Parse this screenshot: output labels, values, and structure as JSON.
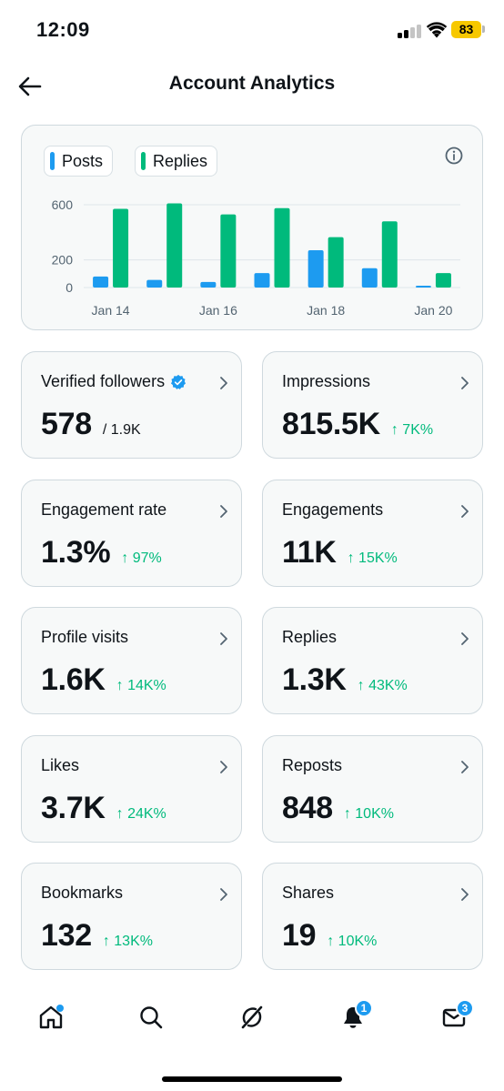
{
  "status_bar": {
    "time": "12:09",
    "battery": "83"
  },
  "header": {
    "title": "Account Analytics"
  },
  "chart_data": {
    "type": "bar",
    "categories": [
      "Jan 14",
      "Jan 15",
      "Jan 16",
      "Jan 17",
      "Jan 18",
      "Jan 19",
      "Jan 20"
    ],
    "x_tick_labels": [
      "Jan 14",
      "Jan 16",
      "Jan 18",
      "Jan 20"
    ],
    "y_tick_labels": [
      "0",
      "200",
      "600"
    ],
    "ylim": [
      0,
      600
    ],
    "series": [
      {
        "name": "Posts",
        "color": "#1d9bf0",
        "values": [
          80,
          55,
          40,
          105,
          270,
          140,
          10
        ]
      },
      {
        "name": "Replies",
        "color": "#00ba7c",
        "values": [
          570,
          610,
          530,
          575,
          365,
          480,
          105
        ]
      }
    ],
    "title": "",
    "xlabel": "",
    "ylabel": "",
    "grid": true
  },
  "legend": {
    "posts_label": "Posts",
    "replies_label": "Replies"
  },
  "stats": [
    {
      "label": "Verified followers",
      "value": "578",
      "total": "/ 1.9K",
      "change": ""
    },
    {
      "label": "Impressions",
      "value": "815.5K",
      "change": "↑ 7K%"
    },
    {
      "label": "Engagement rate",
      "value": "1.3%",
      "change": "↑ 97%"
    },
    {
      "label": "Engagements",
      "value": "11K",
      "change": "↑ 15K%"
    },
    {
      "label": "Profile visits",
      "value": "1.6K",
      "change": "↑ 14K%"
    },
    {
      "label": "Replies",
      "value": "1.3K",
      "change": "↑ 43K%"
    },
    {
      "label": "Likes",
      "value": "3.7K",
      "change": "↑ 24K%"
    },
    {
      "label": "Reposts",
      "value": "848",
      "change": "↑ 10K%"
    },
    {
      "label": "Bookmarks",
      "value": "132",
      "change": "↑ 13K%"
    },
    {
      "label": "Shares",
      "value": "19",
      "change": "↑ 10K%"
    }
  ],
  "tab_bar": {
    "notifications_badge": "1",
    "messages_badge": "3"
  },
  "icons": {
    "back": "arrow-left-icon",
    "info": "info-icon",
    "verified": "verified-badge-icon",
    "chevron": "chevron-right-icon",
    "home": "home-icon",
    "search": "search-icon",
    "grok": "grok-icon",
    "notifications": "bell-icon",
    "messages": "envelope-icon"
  },
  "colors": {
    "posts": "#1d9bf0",
    "replies": "#00ba7c",
    "positive_change": "#00ba7c",
    "card_border": "#cfd9de",
    "card_bg": "#f7f9f9"
  }
}
